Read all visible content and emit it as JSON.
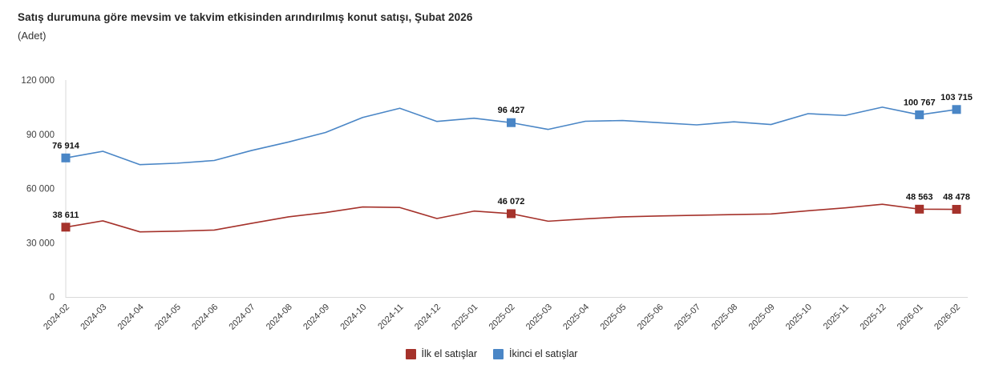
{
  "header": {
    "title": "Satış durumuna göre mevsim ve takvim etkisinden arındırılmış konut satışı, Şubat 2026",
    "subtitle": "(Adet)"
  },
  "chart_data": {
    "type": "line",
    "title": "Satış durumuna göre mevsim ve takvim etkisinden arındırılmış konut satışı, Şubat 2026",
    "unit_label": "(Adet)",
    "categories": [
      "2024-02",
      "2024-03",
      "2024-04",
      "2024-05",
      "2024-06",
      "2024-07",
      "2024-08",
      "2024-09",
      "2024-10",
      "2024-11",
      "2024-12",
      "2025-01",
      "2025-02",
      "2025-03",
      "2025-04",
      "2025-05",
      "2025-06",
      "2025-07",
      "2025-08",
      "2025-09",
      "2025-10",
      "2025-11",
      "2025-12",
      "2026-01",
      "2026-02"
    ],
    "series": [
      {
        "name": "İlk el satışlar",
        "color": "#A5322B",
        "values": [
          38611,
          42100,
          36000,
          36400,
          37000,
          40700,
          44300,
          46700,
          49800,
          49500,
          43400,
          47500,
          46072,
          41900,
          43200,
          44300,
          44800,
          45200,
          45600,
          45900,
          47700,
          49300,
          51300,
          48563,
          48478
        ]
      },
      {
        "name": "İkinci el satışlar",
        "color": "#4A86C6",
        "values": [
          76914,
          80600,
          73200,
          74000,
          75500,
          81000,
          85700,
          91000,
          99300,
          104400,
          97100,
          98900,
          96427,
          92700,
          97200,
          97600,
          96400,
          95200,
          96900,
          95400,
          101400,
          100400,
          105000,
          100767,
          103715
        ]
      }
    ],
    "labeled_indices": [
      0,
      12,
      23,
      24
    ],
    "labeled_values": {
      "İlk el satışlar": [
        "38 611",
        "46 072",
        "48 563",
        "48 478"
      ],
      "İkinci el satışlar": [
        "76 914",
        "96 427",
        "100 767",
        "103 715"
      ]
    },
    "ylim": [
      0,
      120000
    ],
    "yticks": [
      0,
      30000,
      60000,
      90000,
      120000
    ],
    "grid": false,
    "legend_position": "bottom",
    "axis_color": "#d9d9d9",
    "marker_shape": "square"
  }
}
